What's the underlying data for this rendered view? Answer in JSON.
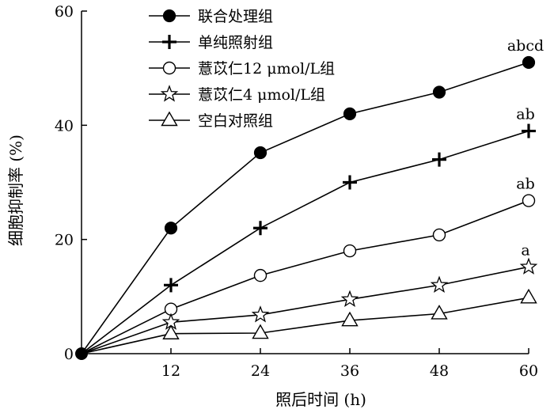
{
  "chart_data": {
    "type": "line",
    "xlabel": "照后时间 (h)",
    "ylabel": "细胞抑制率 (%)",
    "xlim": [
      0,
      60
    ],
    "ylim": [
      0,
      60
    ],
    "x_ticks": [
      12,
      24,
      36,
      48,
      60
    ],
    "x_tick_labels": [
      "12",
      "24",
      "36",
      "48",
      "60"
    ],
    "y_ticks": [
      0,
      20,
      40,
      60
    ],
    "y_tick_labels": [
      "0",
      "20",
      "40",
      "60"
    ],
    "grid": false,
    "legend_position": "top-left",
    "x": [
      0,
      12,
      24,
      36,
      48,
      60
    ],
    "series": [
      {
        "name": "联合处理组",
        "marker": "filled-circle",
        "values": [
          0,
          22,
          35.2,
          42,
          45.8,
          51
        ],
        "end_label": "abcd"
      },
      {
        "name": "单纯照射组",
        "marker": "plus",
        "values": [
          0,
          12,
          22,
          30,
          34,
          39
        ],
        "end_label": "ab"
      },
      {
        "name": "薏苡仁12 μmol/L组",
        "marker": "open-circle",
        "values": [
          0,
          7.8,
          13.7,
          18,
          20.8,
          26.8
        ],
        "end_label": "ab"
      },
      {
        "name": "薏苡仁4 μmol/L组",
        "marker": "open-star",
        "values": [
          0,
          5.5,
          6.8,
          9.5,
          12,
          15.2
        ],
        "end_label": "a"
      },
      {
        "name": "空白对照组",
        "marker": "open-triangle",
        "values": [
          0,
          3.5,
          3.6,
          5.8,
          7,
          9.8
        ],
        "end_label": ""
      }
    ]
  }
}
